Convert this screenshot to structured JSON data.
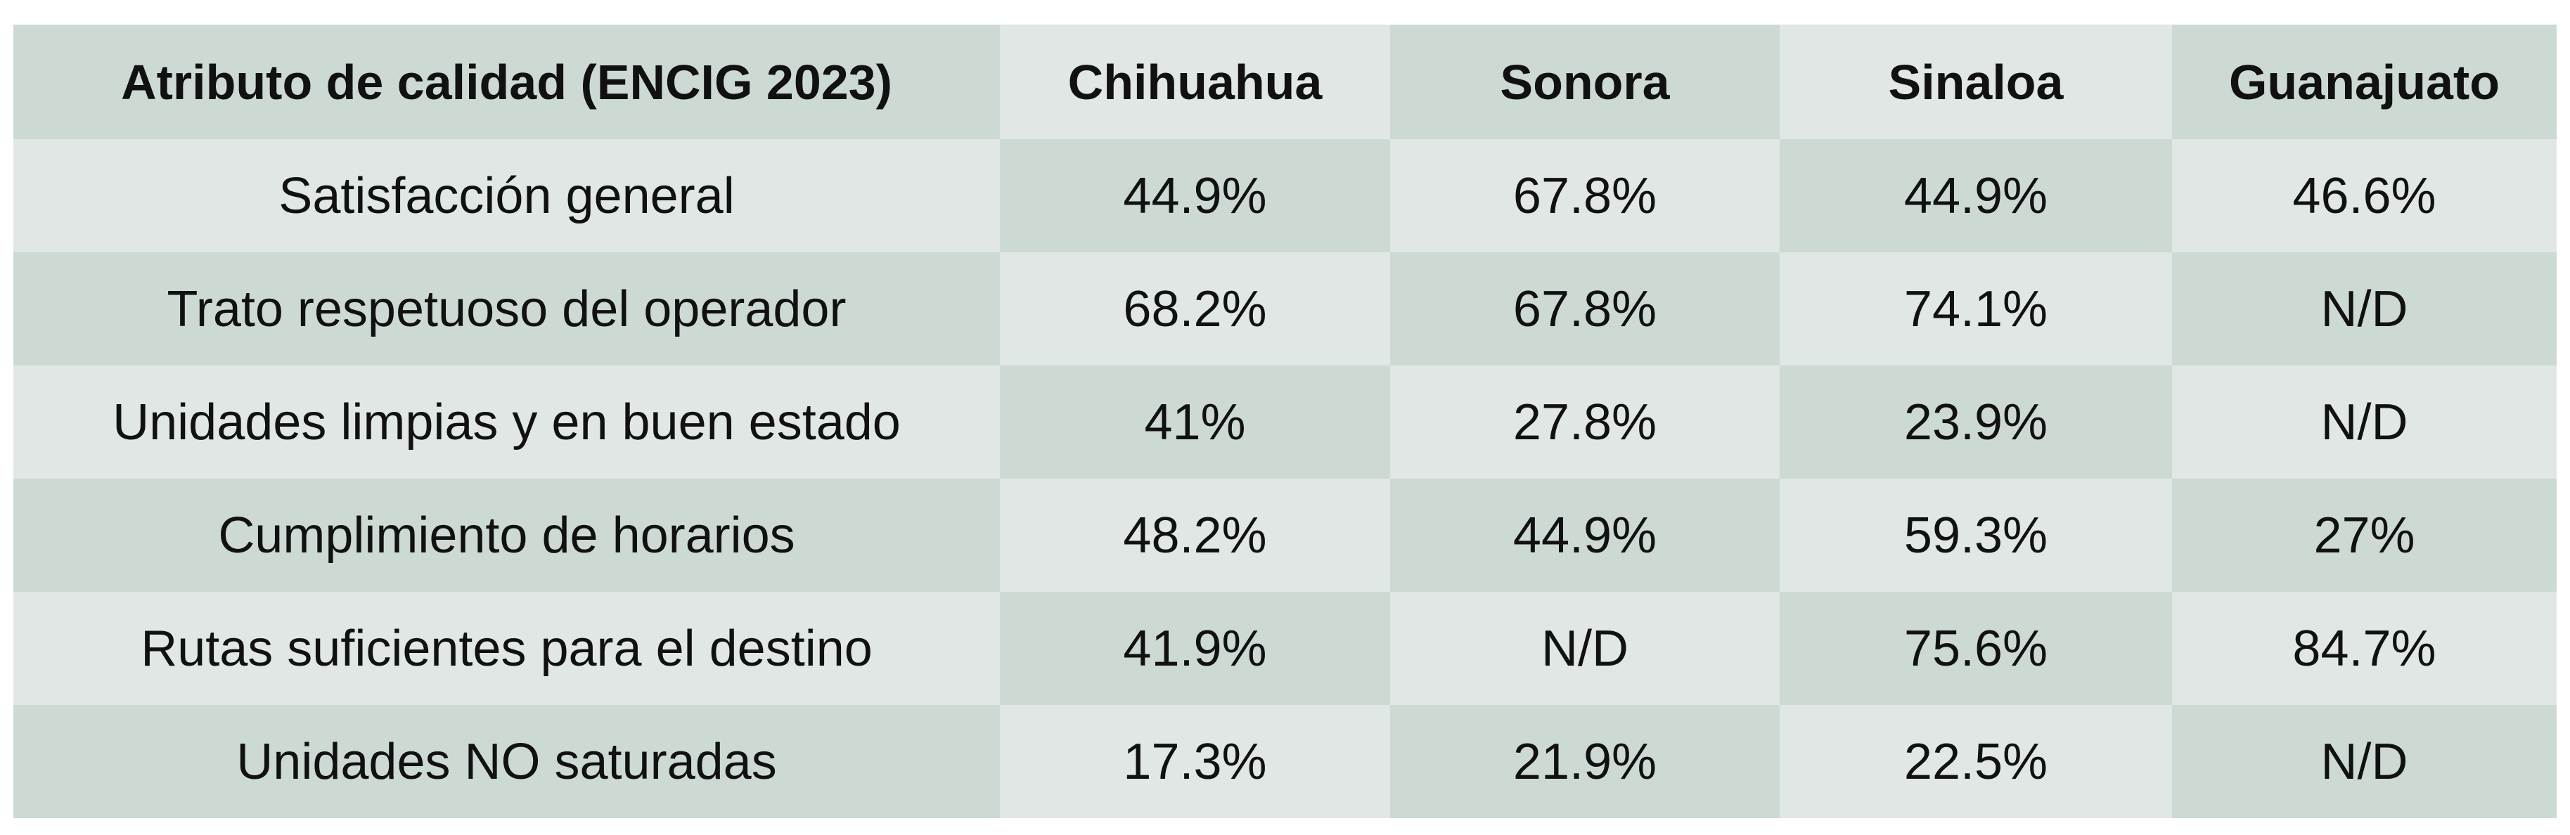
{
  "table": {
    "header": [
      "Atributo de calidad (ENCIG 2023)",
      "Chihuahua",
      "Sonora",
      "Sinaloa",
      "Guanajuato"
    ],
    "rows": [
      [
        "Satisfacción general",
        "44.9%",
        "67.8%",
        "44.9%",
        "46.6%"
      ],
      [
        "Trato respetuoso del operador",
        "68.2%",
        "67.8%",
        "74.1%",
        "N/D"
      ],
      [
        "Unidades limpias y en buen estado",
        "41%",
        "27.8%",
        "23.9%",
        "N/D"
      ],
      [
        "Cumplimiento de horarios",
        "48.2%",
        "44.9%",
        "59.3%",
        "27%"
      ],
      [
        "Rutas suficientes para el destino",
        "41.9%",
        "N/D",
        "75.6%",
        "84.7%"
      ],
      [
        "Unidades NO saturadas",
        "17.3%",
        "21.9%",
        "22.5%",
        "N/D"
      ]
    ]
  }
}
